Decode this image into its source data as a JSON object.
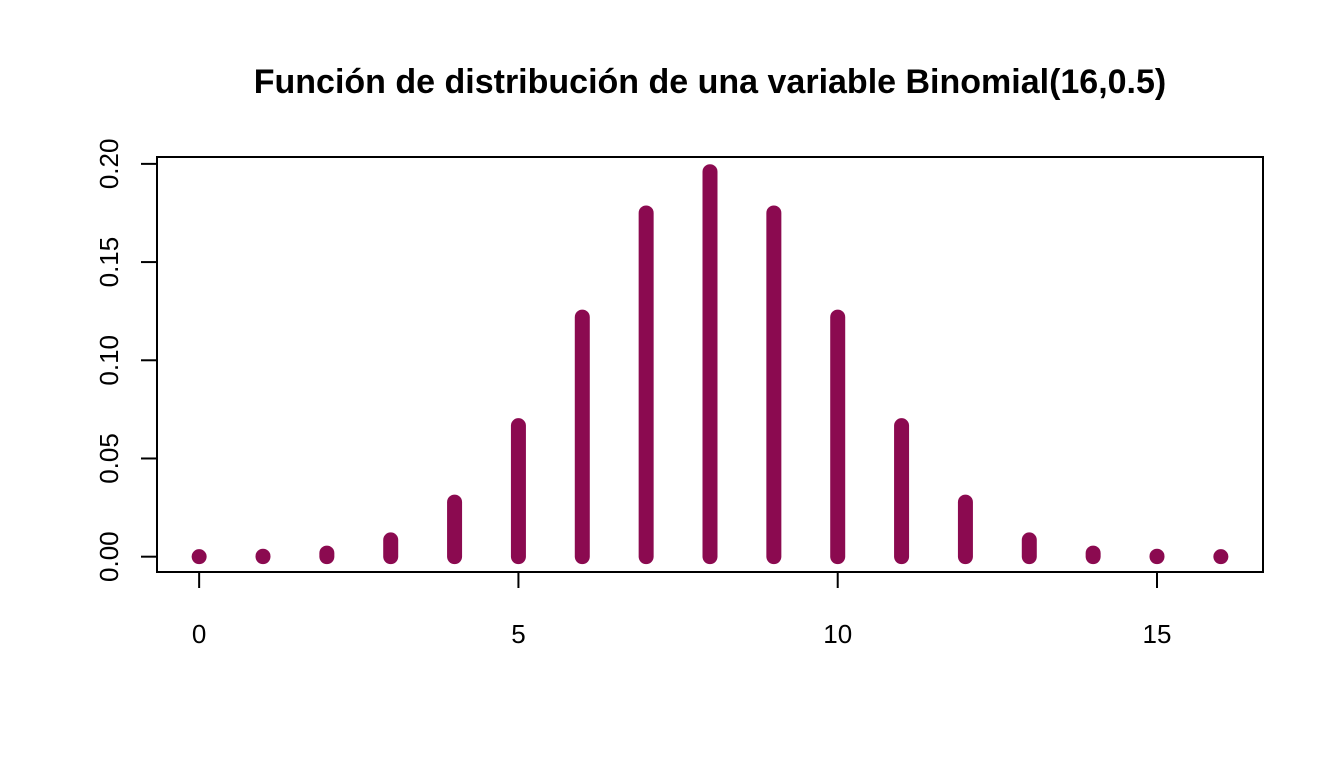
{
  "chart_data": {
    "type": "bar",
    "title": "Función de distribución de una variable Binomial(16,0.5)",
    "xlabel": "",
    "ylabel": "",
    "x": [
      0,
      1,
      2,
      3,
      4,
      5,
      6,
      7,
      8,
      9,
      10,
      11,
      12,
      13,
      14,
      15,
      16
    ],
    "values": [
      1.53e-05,
      0.000244,
      0.00183,
      0.00854,
      0.0278,
      0.0667,
      0.122,
      0.175,
      0.196,
      0.175,
      0.122,
      0.0667,
      0.0278,
      0.00854,
      0.00183,
      0.000244,
      1.53e-05
    ],
    "xlim": [
      -0.66,
      16.66
    ],
    "ylim": [
      -0.0078,
      0.2035
    ],
    "x_ticks": [
      0,
      5,
      10,
      15
    ],
    "x_tick_labels": [
      "0",
      "5",
      "10",
      "15"
    ],
    "y_ticks": [
      0.0,
      0.05,
      0.1,
      0.15,
      0.2
    ],
    "y_tick_labels": [
      "0.00",
      "0.05",
      "0.10",
      "0.15",
      "0.20"
    ],
    "grid": false,
    "bar_color": "#8B0A50"
  }
}
